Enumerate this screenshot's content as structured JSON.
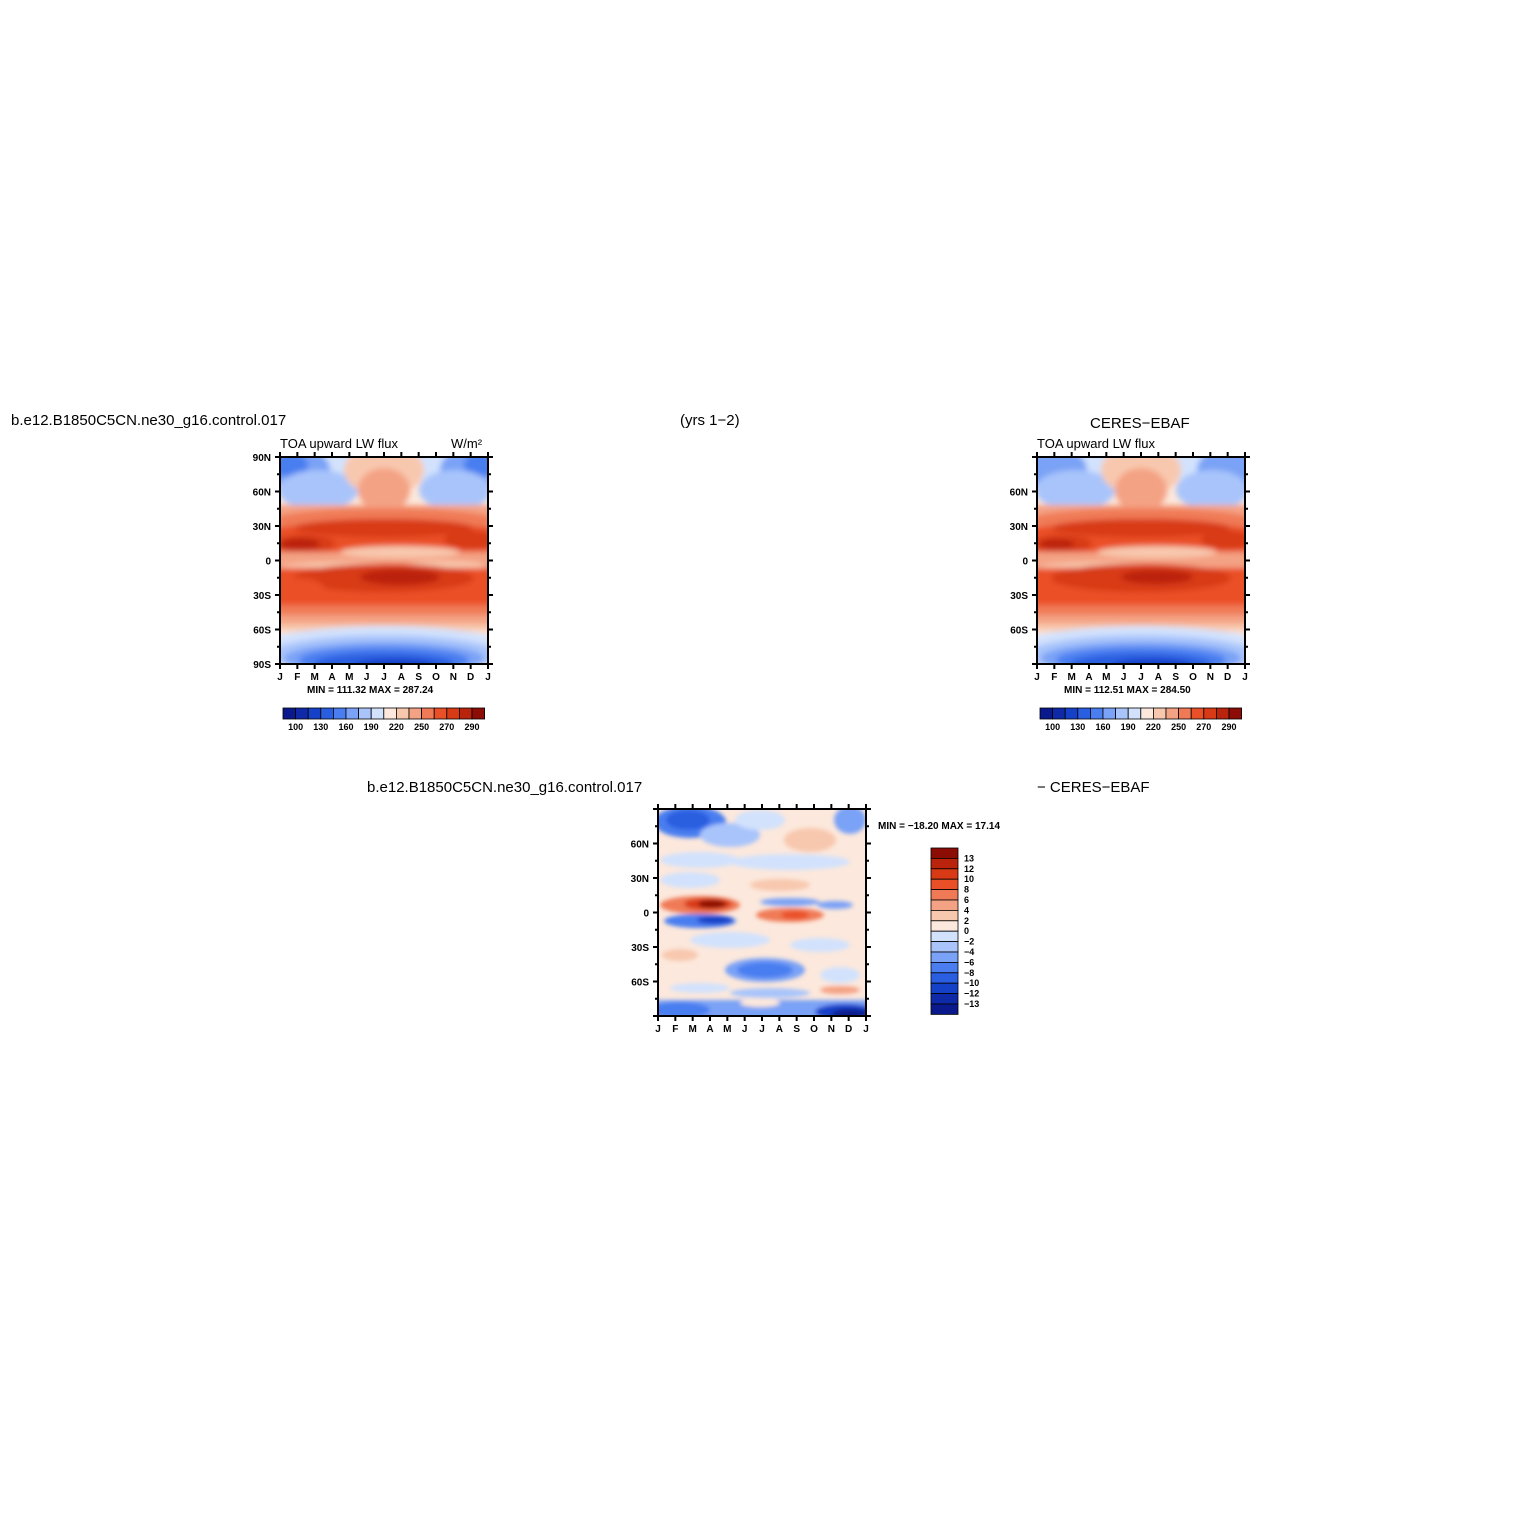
{
  "page": {
    "case_left": "b.e12.B1850C5CN.ne30_g16.control.017",
    "years": "(yrs 1−2)",
    "obs_title": "CERES−EBAF",
    "diff_left": "b.e12.B1850C5CN.ne30_g16.control.017",
    "diff_right": "− CERES−EBAF"
  },
  "colors": {
    "abs_levels": [
      "#0a1a8c",
      "#0f2aa8",
      "#1540c8",
      "#2a5ee0",
      "#4a7ef0",
      "#7aa2f6",
      "#a8c4fb",
      "#d2e2fd",
      "#fce8dc",
      "#f8c8ae",
      "#f4a284",
      "#f07a56",
      "#ea5028",
      "#d83a16",
      "#bb240c",
      "#8c0c06"
    ],
    "diff_levels": [
      "#0a1a8c",
      "#0f2aa8",
      "#1540c8",
      "#2a5ee0",
      "#4a7ef0",
      "#7aa2f6",
      "#a8c4fb",
      "#d2e2fd",
      "#fce8dc",
      "#f8c8ae",
      "#f4a284",
      "#f07a56",
      "#ea5028",
      "#d83a16",
      "#bb240c",
      "#8c0c06"
    ]
  },
  "chart_data": [
    {
      "id": "model",
      "type": "heatmap",
      "title_left": "TOA upward LW flux",
      "units": "W/m²",
      "x_ticks": [
        "J",
        "F",
        "M",
        "A",
        "M",
        "J",
        "J",
        "A",
        "S",
        "O",
        "N",
        "D",
        "J"
      ],
      "y_ticks": [
        "90N",
        "60N",
        "30N",
        "0",
        "30S",
        "60S",
        "90S"
      ],
      "stats": "MIN = 111.32  MAX = 287.24",
      "min": 111.32,
      "max": 287.24,
      "colorbar_labels": [
        "100",
        "130",
        "160",
        "190",
        "220",
        "250",
        "270",
        "290"
      ]
    },
    {
      "id": "obs",
      "type": "heatmap",
      "title_left": "TOA upward LW flux",
      "x_ticks": [
        "J",
        "F",
        "M",
        "A",
        "M",
        "J",
        "J",
        "A",
        "S",
        "O",
        "N",
        "D",
        "J"
      ],
      "y_ticks": [
        "60N",
        "30N",
        "0",
        "30S",
        "60S"
      ],
      "stats": "MIN = 112.51  MAX = 284.50",
      "min": 112.51,
      "max": 284.5,
      "colorbar_labels": [
        "100",
        "130",
        "160",
        "190",
        "220",
        "250",
        "270",
        "290"
      ]
    },
    {
      "id": "diff",
      "type": "heatmap",
      "x_ticks": [
        "J",
        "F",
        "M",
        "A",
        "M",
        "J",
        "J",
        "A",
        "S",
        "O",
        "N",
        "D",
        "J"
      ],
      "y_ticks": [
        "60N",
        "30N",
        "0",
        "30S",
        "60S"
      ],
      "stats": "MIN = −18.20  MAX =   17.14",
      "min": -18.2,
      "max": 17.14,
      "colorbar_labels": [
        "13",
        "12",
        "10",
        "8",
        "6",
        "4",
        "2",
        "0",
        "−2",
        "−4",
        "−6",
        "−8",
        "−10",
        "−12",
        "−13"
      ]
    }
  ]
}
